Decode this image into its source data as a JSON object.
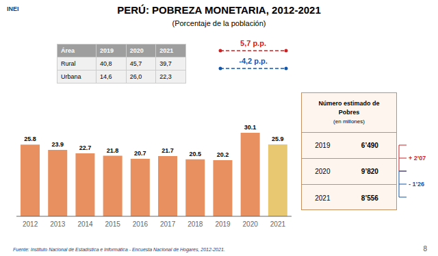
{
  "chart_data": {
    "type": "bar",
    "title": "PERÚ: POBREZA MONETARIA, 2012-2021",
    "subtitle": "(Porcentaje de la población)",
    "categories": [
      "2012",
      "2013",
      "2014",
      "2015",
      "2016",
      "2017",
      "2018",
      "2019",
      "2020",
      "2021"
    ],
    "values": [
      25.8,
      23.9,
      22.7,
      21.8,
      20.7,
      21.7,
      20.5,
      20.2,
      30.1,
      25.9
    ],
    "colors": [
      "#E89060",
      "#E89060",
      "#E89060",
      "#E89060",
      "#E89060",
      "#E89060",
      "#E89060",
      "#E89060",
      "#E89060",
      "#E8C870"
    ],
    "ylim": [
      0,
      35
    ],
    "data_labels": true,
    "tick_labels": "x",
    "grid": false,
    "table": {
      "headers": [
        "Área",
        "2019",
        "2020",
        "2021"
      ],
      "rows": [
        [
          "Rural",
          "40,8",
          "45,7",
          "39,7"
        ],
        [
          "Urbana",
          "14,6",
          "26,0",
          "22,3"
        ]
      ]
    },
    "annotations": [
      {
        "text": "5,7 p.p.",
        "color": "#CC2222"
      },
      {
        "text": "-4,2 p.p.",
        "color": "#1155AA"
      }
    ],
    "info_box": {
      "title": [
        "Número estimado de",
        "Pobres",
        "(en millones)"
      ],
      "rows": [
        [
          "2019",
          "6’490"
        ],
        [
          "2020",
          "9’820"
        ],
        [
          "2021",
          "8’556"
        ]
      ],
      "notes": [
        {
          "text": "+ 2’07",
          "color": "#CC2222"
        },
        {
          "text": "- 1’26",
          "color": "#1155AA"
        }
      ]
    },
    "logo": {
      "text": "INEI",
      "color": "#1F3B6B"
    },
    "source": "Fuente: Instituto Nacional de Estadística e Informática - Encuesta Nacional de Hogares, 2012-2021.",
    "page_number": "8"
  }
}
